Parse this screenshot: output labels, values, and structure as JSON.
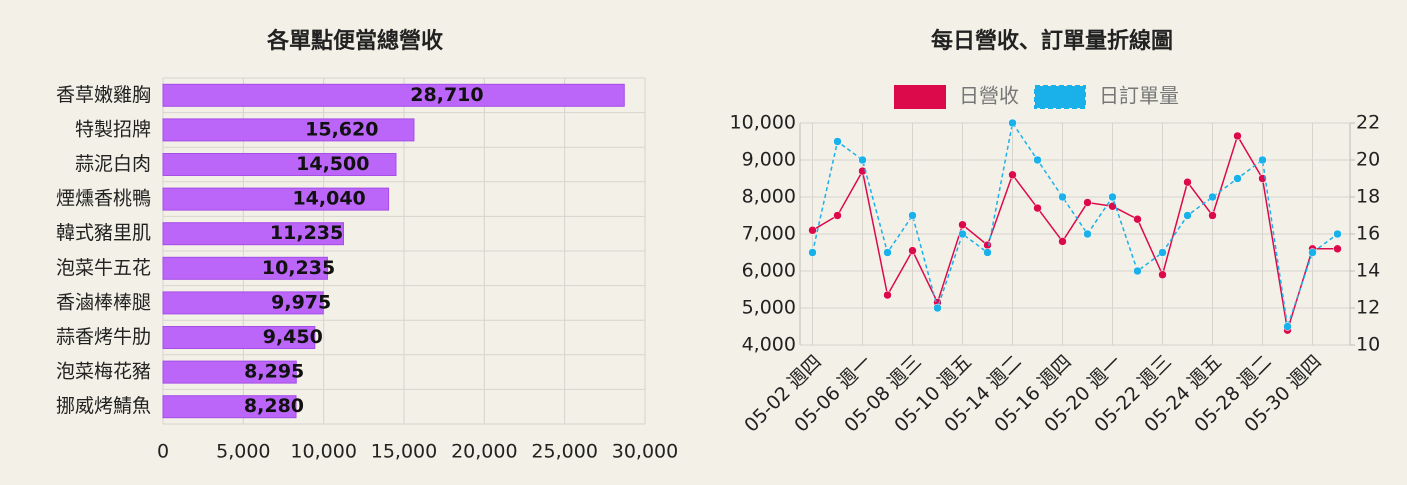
{
  "chart_data": [
    {
      "type": "bar",
      "orientation": "horizontal",
      "title": "各單點便當總營收",
      "categories": [
        "香草嫩雞胸",
        "特製招牌",
        "蒜泥白肉",
        "煙燻香桃鴨",
        "韓式豬里肌",
        "泡菜牛五花",
        "香滷棒棒腿",
        "蒜香烤牛肋",
        "泡菜梅花豬",
        "挪威烤鯖魚"
      ],
      "values": [
        28710,
        15620,
        14500,
        14040,
        11235,
        10235,
        9975,
        9450,
        8295,
        8280
      ],
      "value_labels": [
        "28,710",
        "15,620",
        "14,500",
        "14,040",
        "11,235",
        "10,235",
        "9,975",
        "9,450",
        "8,295",
        "8,280"
      ],
      "color": "#bb66f9",
      "xlim": [
        0,
        30000
      ],
      "xticks": [
        0,
        {
          "value": 5000,
          "label": "5,000"
        },
        {
          "value": 10000,
          "label": "10,000"
        },
        {
          "value": 15000,
          "label": "15,000"
        },
        {
          "value": 20000,
          "label": "20,000"
        },
        {
          "value": 25000,
          "label": "25,000"
        },
        {
          "value": 30000,
          "label": "30,000"
        }
      ],
      "grid": true
    },
    {
      "type": "line",
      "title": "每日營收、訂單量折線圖",
      "categories": [
        "05-02 週四",
        null,
        "05-06 週一",
        null,
        "05-08 週三",
        null,
        "05-10 週五",
        null,
        "05-14 週二",
        null,
        "05-16 週四",
        null,
        "05-20 週一",
        null,
        "05-22 週三",
        null,
        "05-24 週五",
        null,
        "05-28 週二",
        null,
        "05-30 週四",
        null
      ],
      "series": [
        {
          "name": "日營收",
          "color": "#dc0a4a",
          "values": [
            7100,
            7500,
            8700,
            5350,
            6550,
            5150,
            7250,
            6700,
            8600,
            7700,
            6800,
            7850,
            7750,
            7400,
            5900,
            8400,
            7500,
            9650,
            8500,
            4400,
            6600,
            6600
          ]
        },
        {
          "name": "日訂單量",
          "color": "#1ab0ea",
          "axis": "y2",
          "dashed": true,
          "values": [
            15,
            21,
            20,
            15,
            17,
            12,
            16,
            15,
            22,
            20,
            18,
            16,
            18,
            14,
            15,
            17,
            18,
            19,
            20,
            11,
            15,
            16
          ]
        }
      ],
      "ylim": [
        4000,
        10000
      ],
      "yticks": [
        {
          "value": 4000,
          "label": "4,000"
        },
        {
          "value": 5000,
          "label": "5,000"
        },
        {
          "value": 6000,
          "label": "6,000"
        },
        {
          "value": 7000,
          "label": "7,000"
        },
        {
          "value": 8000,
          "label": "8,000"
        },
        {
          "value": 9000,
          "label": "9,000"
        },
        {
          "value": 10000,
          "label": "10,000"
        }
      ],
      "y2lim": [
        10,
        22
      ],
      "y2ticks": [
        10,
        12,
        14,
        16,
        18,
        20,
        22
      ],
      "grid": true,
      "legend": "top"
    }
  ]
}
